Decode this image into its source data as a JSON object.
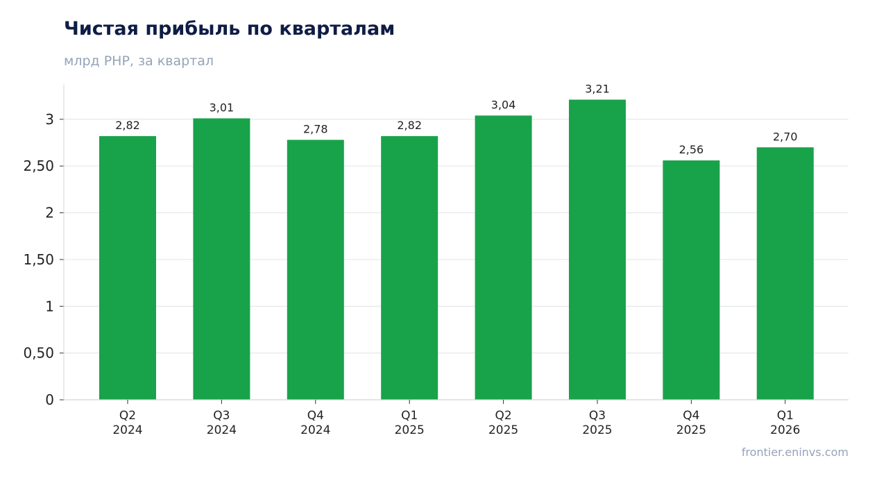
{
  "header": {
    "title": "Чистая прибыль по кварталам",
    "subtitle": "млрд РНР, за квартал"
  },
  "footer": {
    "source": "frontier.eninvs.com"
  },
  "colors": {
    "bar": "#18a34a",
    "grid": "#e5e7eb",
    "axis": "#d1d5db",
    "title": "#0f1d45",
    "muted": "#94a3b8"
  },
  "chart_data": {
    "type": "bar",
    "title": "Чистая прибыль по кварталам",
    "subtitle": "млрд РНР, за квартал",
    "categories": [
      [
        "Q2",
        "2024"
      ],
      [
        "Q3",
        "2024"
      ],
      [
        "Q4",
        "2024"
      ],
      [
        "Q1",
        "2025"
      ],
      [
        "Q2",
        "2025"
      ],
      [
        "Q3",
        "2025"
      ],
      [
        "Q4",
        "2025"
      ],
      [
        "Q1",
        "2026"
      ]
    ],
    "values": [
      2.82,
      3.01,
      2.78,
      2.82,
      3.04,
      3.21,
      2.56,
      2.7
    ],
    "value_labels": [
      "2,82",
      "3,01",
      "2,78",
      "2,82",
      "3,04",
      "3,21",
      "2,56",
      "2,70"
    ],
    "yticks": [
      0,
      0.5,
      1,
      1.5,
      2,
      2.5,
      3
    ],
    "ytick_labels": [
      "0",
      "0,50",
      "1",
      "1,50",
      "2",
      "2,50",
      "3"
    ],
    "ylim": [
      0,
      3.37
    ],
    "grid": true,
    "legend": "none"
  }
}
